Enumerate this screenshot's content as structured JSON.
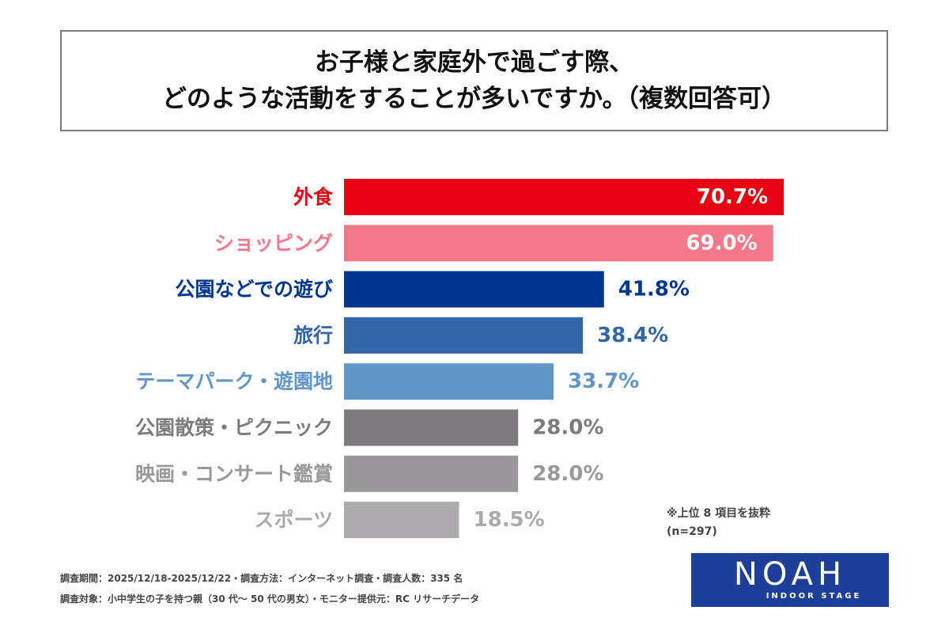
{
  "title": {
    "line1": "お子様と家庭外で過ごす際、",
    "line2": "どのような活動をすることが多いですか。（複数回答可）"
  },
  "chart_data": {
    "type": "bar",
    "orientation": "horizontal",
    "categories": [
      "外食",
      "ショッピング",
      "公園などでの遊び",
      "旅行",
      "テーマパーク・遊園地",
      "公園散策・ピクニック",
      "映画・コンサート鑑賞",
      "スポーツ"
    ],
    "values": [
      70.7,
      69.0,
      41.8,
      38.4,
      33.7,
      28.0,
      28.0,
      18.5
    ],
    "value_labels": [
      "70.7%",
      "69.0%",
      "41.8%",
      "38.4%",
      "33.7%",
      "28.0%",
      "28.0%",
      "18.5%"
    ],
    "bar_colors": [
      "#e60012",
      "#f2788a",
      "#003592",
      "#3366a8",
      "#6096c8",
      "#7d7b7e",
      "#9a989b",
      "#acaaad"
    ],
    "label_colors": [
      "#e60012",
      "#f2788a",
      "#003592",
      "#3366a8",
      "#6096c8",
      "#7d7b7e",
      "#9a989b",
      "#acaaad"
    ],
    "xlim": [
      0,
      70.7
    ],
    "grid": false
  },
  "note": {
    "line1": "※上位 8 項目を抜粋",
    "line2": "(n=297)"
  },
  "footer": {
    "line1": "調査期間：2025/12/18-2025/12/22・調査方法：インターネット調査・調査人数：335 名",
    "line2": "調査対象：小中学生の子を持つ親（30 代～ 50 代の男女）・モニター提供元：RC リサーチデータ"
  },
  "logo": {
    "main": "NOAH",
    "sub": "INDOOR STAGE",
    "color": "#1d3f9a"
  }
}
